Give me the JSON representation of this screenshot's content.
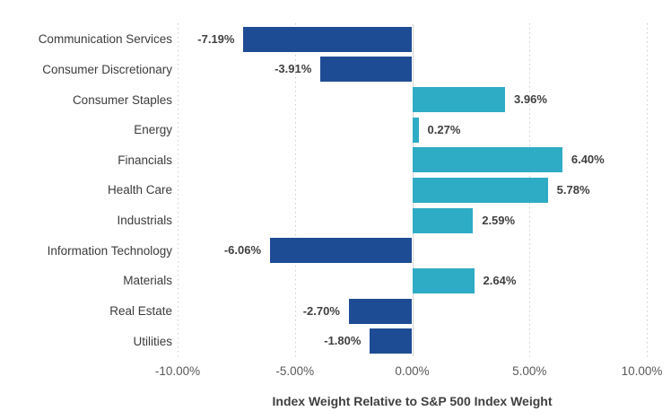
{
  "chart_data": {
    "type": "bar",
    "orientation": "horizontal",
    "title": "",
    "xlabel": "Index Weight Relative to S&P 500 Index Weight",
    "categories": [
      "Communication Services",
      "Consumer Discretionary",
      "Consumer Staples",
      "Energy",
      "Financials",
      "Health Care",
      "Industrials",
      "Information Technology",
      "Materials",
      "Real Estate",
      "Utilities"
    ],
    "values": [
      -7.19,
      -3.91,
      3.96,
      0.27,
      6.4,
      5.78,
      2.59,
      -6.06,
      2.64,
      -2.7,
      -1.8
    ],
    "value_labels": [
      "-7.19%",
      "-3.91%",
      "3.96%",
      "0.27%",
      "6.40%",
      "5.78%",
      "2.59%",
      "-6.06%",
      "2.64%",
      "-2.70%",
      "-1.80%"
    ],
    "xlim": [
      -10,
      10
    ],
    "xtick_values": [
      -10,
      -5,
      0,
      5,
      10
    ],
    "xtick_labels": [
      "-10.00%",
      "-5.00%",
      "0.00%",
      "5.00%",
      "10.00%"
    ],
    "grid": "vertical-dotted",
    "legend": "none",
    "colors": {
      "positive_bar": "#2FACC5",
      "negative_bar": "#1E4C94",
      "gridline": "#CCCCCC",
      "zero_line": "#D4D4D4",
      "value_label": "#404040",
      "category_label": "#3B3B3B",
      "tick_label": "#595959",
      "axis_title": "#3F3F3F"
    }
  }
}
